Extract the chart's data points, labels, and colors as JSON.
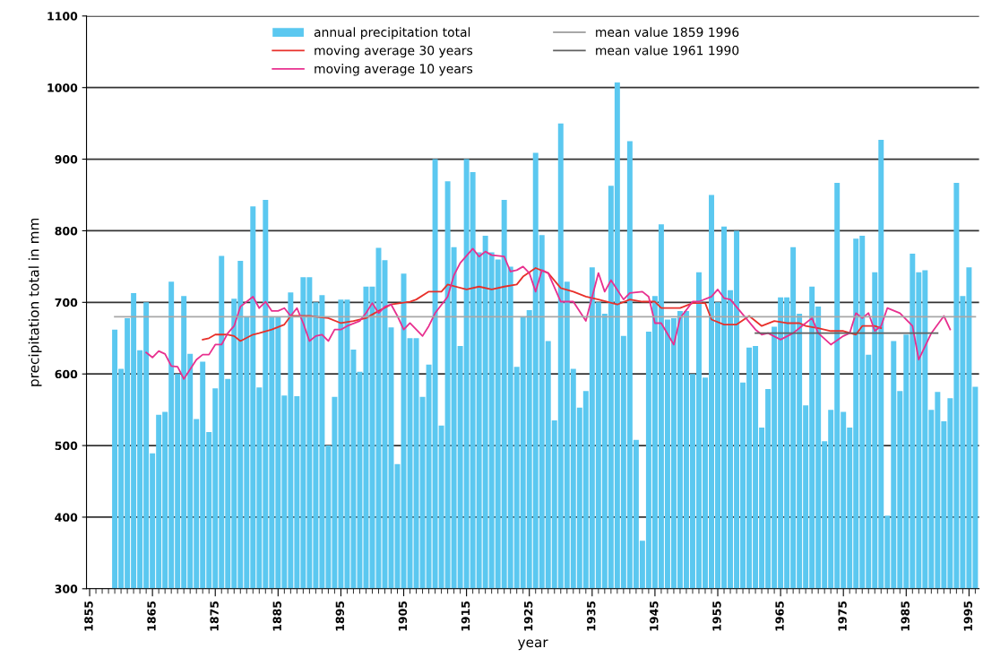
{
  "chart_data": {
    "type": "bar",
    "xlabel": "year",
    "ylabel": "precipitation total in mm",
    "xlim": [
      1854.5,
      1996.6
    ],
    "xticks": [
      1855,
      1865,
      1875,
      1885,
      1895,
      1905,
      1915,
      1925,
      1935,
      1945,
      1955,
      1965,
      1975,
      1985,
      1995
    ],
    "ylim": [
      300,
      1100
    ],
    "yticks": [
      300,
      400,
      500,
      600,
      700,
      800,
      900,
      1000,
      1100
    ],
    "grid": "y",
    "legend": "top",
    "series": [
      {
        "name": "annual precipitation total",
        "color": "#5bc8f0",
        "x": [
          1859,
          1860,
          1861,
          1862,
          1863,
          1864,
          1865,
          1866,
          1867,
          1868,
          1869,
          1870,
          1871,
          1872,
          1873,
          1874,
          1875,
          1876,
          1877,
          1878,
          1879,
          1880,
          1881,
          1882,
          1883,
          1884,
          1885,
          1886,
          1887,
          1888,
          1889,
          1890,
          1891,
          1892,
          1893,
          1894,
          1895,
          1896,
          1897,
          1898,
          1899,
          1900,
          1901,
          1902,
          1903,
          1904,
          1905,
          1906,
          1907,
          1908,
          1909,
          1910,
          1911,
          1912,
          1913,
          1914,
          1915,
          1916,
          1917,
          1918,
          1919,
          1920,
          1921,
          1922,
          1923,
          1924,
          1925,
          1926,
          1927,
          1928,
          1929,
          1930,
          1931,
          1932,
          1933,
          1934,
          1935,
          1936,
          1937,
          1938,
          1939,
          1940,
          1941,
          1942,
          1943,
          1944,
          1945,
          1946,
          1947,
          1948,
          1949,
          1950,
          1951,
          1952,
          1953,
          1954,
          1955,
          1956,
          1957,
          1958,
          1959,
          1960,
          1961,
          1962,
          1963,
          1964,
          1965,
          1966,
          1967,
          1968,
          1969,
          1970,
          1971,
          1972,
          1973,
          1974,
          1975,
          1976,
          1977,
          1978,
          1979,
          1980,
          1981,
          1982,
          1983,
          1984,
          1985,
          1986,
          1987,
          1988,
          1989,
          1990,
          1991,
          1992,
          1993,
          1994,
          1995,
          1996
        ],
        "values": [
          662,
          607,
          678,
          713,
          633,
          700,
          489,
          543,
          547,
          729,
          600,
          709,
          628,
          537,
          617,
          519,
          580,
          765,
          593,
          705,
          758,
          680,
          834,
          581,
          843,
          680,
          680,
          570,
          714,
          569,
          735,
          735,
          700,
          710,
          500,
          568,
          704,
          704,
          634,
          603,
          722,
          722,
          776,
          759,
          665,
          474,
          740,
          650,
          650,
          568,
          613,
          900,
          528,
          869,
          777,
          639,
          900,
          882,
          770,
          793,
          770,
          760,
          843,
          750,
          610,
          680,
          689,
          909,
          794,
          646,
          535,
          950,
          729,
          607,
          553,
          576,
          749,
          700,
          684,
          863,
          1007,
          653,
          925,
          508,
          367,
          659,
          709,
          809,
          676,
          678,
          688,
          688,
          600,
          742,
          595,
          850,
          700,
          806,
          717,
          800,
          588,
          637,
          639,
          525,
          579,
          666,
          707,
          707,
          777,
          684,
          556,
          722,
          694,
          506,
          550,
          867,
          547,
          525,
          789,
          793,
          627,
          742,
          927,
          402,
          646,
          576,
          655,
          768,
          742,
          745,
          550,
          575,
          534,
          566,
          867,
          709,
          749,
          582
        ]
      },
      {
        "name": "moving average 30 years",
        "type": "line",
        "color": "#e8302a",
        "x": [
          1873,
          1874,
          1875,
          1877,
          1878,
          1879,
          1881,
          1882,
          1884,
          1886,
          1887,
          1889,
          1890,
          1893,
          1895,
          1897,
          1899,
          1901,
          1903,
          1906,
          1907,
          1909,
          1911,
          1912,
          1915,
          1917,
          1919,
          1921,
          1923,
          1924,
          1926,
          1928,
          1930,
          1932,
          1934,
          1936,
          1939,
          1941,
          1943,
          1945,
          1946,
          1949,
          1951,
          1953,
          1954,
          1956,
          1958,
          1960,
          1962,
          1964,
          1966,
          1968,
          1969,
          1971,
          1973,
          1975,
          1977,
          1978,
          1980,
          1981
        ],
        "values": [
          648,
          650,
          655,
          655,
          653,
          646,
          655,
          657,
          662,
          669,
          681,
          681,
          681,
          678,
          671,
          674,
          678,
          688,
          697,
          701,
          704,
          715,
          715,
          725,
          718,
          722,
          718,
          722,
          725,
          736,
          748,
          741,
          720,
          715,
          708,
          704,
          697,
          704,
          701,
          701,
          692,
          692,
          699,
          699,
          676,
          669,
          669,
          681,
          667,
          674,
          671,
          671,
          667,
          664,
          660,
          660,
          655,
          667,
          667,
          664
        ]
      },
      {
        "name": "moving average 10 years",
        "type": "line",
        "color": "#e8308f",
        "x": [
          1864,
          1865,
          1866,
          1867,
          1868,
          1869,
          1870,
          1872,
          1873,
          1874,
          1875,
          1876,
          1877,
          1878,
          1879,
          1881,
          1882,
          1883,
          1884,
          1885,
          1886,
          1887,
          1888,
          1889,
          1890,
          1891,
          1892,
          1893,
          1894,
          1895,
          1896,
          1898,
          1899,
          1900,
          1901,
          1902,
          1903,
          1904,
          1905,
          1906,
          1907,
          1908,
          1909,
          1910,
          1912,
          1913,
          1914,
          1916,
          1917,
          1918,
          1919,
          1921,
          1922,
          1923,
          1924,
          1925,
          1926,
          1927,
          1928,
          1930,
          1932,
          1934,
          1936,
          1937,
          1938,
          1940,
          1941,
          1943,
          1944,
          1945,
          1946,
          1948,
          1949,
          1951,
          1952,
          1954,
          1955,
          1956,
          1957,
          1959,
          1961,
          1962,
          1963,
          1965,
          1967,
          1968,
          1970,
          1971,
          1973,
          1975,
          1976,
          1977,
          1978,
          1979,
          1980,
          1981,
          1982,
          1984,
          1986,
          1987,
          1989,
          1991,
          1992
        ],
        "values": [
          630,
          623,
          632,
          628,
          611,
          610,
          593,
          620,
          627,
          627,
          641,
          641,
          657,
          667,
          694,
          708,
          692,
          701,
          688,
          688,
          692,
          681,
          692,
          671,
          646,
          653,
          655,
          646,
          662,
          662,
          667,
          674,
          685,
          699,
          685,
          694,
          697,
          681,
          662,
          671,
          662,
          653,
          667,
          685,
          708,
          738,
          755,
          775,
          764,
          771,
          766,
          764,
          743,
          745,
          750,
          741,
          715,
          745,
          741,
          701,
          701,
          674,
          741,
          715,
          731,
          704,
          713,
          715,
          708,
          671,
          671,
          641,
          678,
          701,
          701,
          708,
          718,
          706,
          704,
          683,
          662,
          655,
          657,
          648,
          657,
          664,
          678,
          657,
          641,
          653,
          657,
          685,
          678,
          685,
          660,
          667,
          692,
          685,
          667,
          620,
          657,
          681,
          662
        ]
      },
      {
        "name": "mean value 1859 1996",
        "type": "line",
        "color": "#a8a8a8",
        "x": [
          1859,
          1996
        ],
        "values": [
          680,
          680
        ]
      },
      {
        "name": "mean value 1961 1990",
        "type": "line",
        "color": "#606060",
        "x": [
          1961,
          1990
        ],
        "values": [
          657,
          657
        ]
      }
    ]
  }
}
